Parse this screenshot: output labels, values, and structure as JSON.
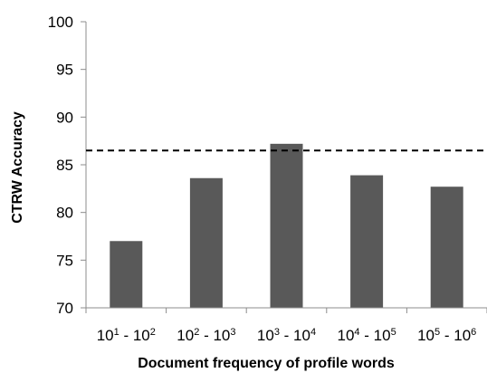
{
  "chart_data": {
    "type": "bar",
    "title": "",
    "xlabel": "Document frequency of profile words",
    "ylabel": "CTRW Accuracy",
    "ylim": [
      70,
      100
    ],
    "yticks": [
      70,
      75,
      80,
      85,
      90,
      95,
      100
    ],
    "grid": false,
    "legend": "none",
    "categories": [
      {
        "base1": "10",
        "exp1": "1",
        "sep": " - ",
        "base2": "10",
        "exp2": "2"
      },
      {
        "base1": "10",
        "exp1": "2",
        "sep": " - ",
        "base2": "10",
        "exp2": "3"
      },
      {
        "base1": "10",
        "exp1": "3",
        "sep": " - ",
        "base2": "10",
        "exp2": "4"
      },
      {
        "base1": "10",
        "exp1": "4",
        "sep": " - ",
        "base2": "10",
        "exp2": "5"
      },
      {
        "base1": "10",
        "exp1": "5",
        "sep": " - ",
        "base2": "10",
        "exp2": "6"
      }
    ],
    "values": [
      77.0,
      83.6,
      87.2,
      83.9,
      82.7
    ],
    "reference_line": {
      "value": 86.5,
      "style": "dashed"
    },
    "bar_color": "#595959"
  }
}
